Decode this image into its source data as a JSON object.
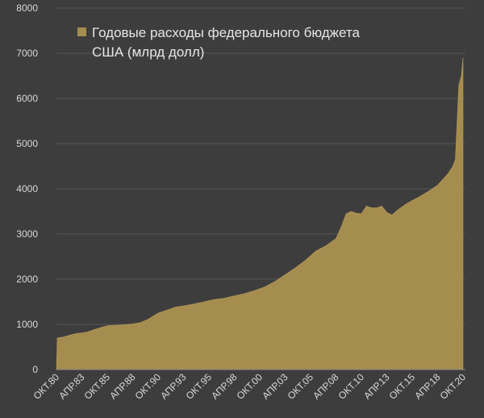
{
  "chart_data": {
    "type": "area",
    "title": "",
    "xlabel": "",
    "ylabel": "",
    "ylim": [
      0,
      8000
    ],
    "y_ticks": [
      0,
      1000,
      2000,
      3000,
      4000,
      5000,
      6000,
      7000,
      8000
    ],
    "grid": true,
    "legend_position": "top-left",
    "series": [
      {
        "name_lines": [
          "Годовые расходы федерального бюджета",
          "США (млрд долл)"
        ],
        "color": "#a58c4f",
        "points": [
          [
            "1980-10",
            0
          ],
          [
            "1980-11",
            700
          ],
          [
            "1981-06",
            720
          ],
          [
            "1982-03",
            770
          ],
          [
            "1982-10",
            800
          ],
          [
            "1983-04",
            810
          ],
          [
            "1983-10",
            830
          ],
          [
            "1984-06",
            880
          ],
          [
            "1985-04",
            940
          ],
          [
            "1985-10",
            970
          ],
          [
            "1986-06",
            980
          ],
          [
            "1987-04",
            990
          ],
          [
            "1988-04",
            1010
          ],
          [
            "1989-01",
            1040
          ],
          [
            "1989-10",
            1110
          ],
          [
            "1990-04",
            1180
          ],
          [
            "1990-10",
            1250
          ],
          [
            "1991-06",
            1300
          ],
          [
            "1992-06",
            1380
          ],
          [
            "1993-04",
            1410
          ],
          [
            "1994-04",
            1450
          ],
          [
            "1995-04",
            1500
          ],
          [
            "1996-04",
            1550
          ],
          [
            "1997-04",
            1580
          ],
          [
            "1998-04",
            1630
          ],
          [
            "1999-04",
            1680
          ],
          [
            "2000-04",
            1750
          ],
          [
            "2001-04",
            1830
          ],
          [
            "2002-04",
            1950
          ],
          [
            "2003-04",
            2100
          ],
          [
            "2004-04",
            2250
          ],
          [
            "2005-04",
            2420
          ],
          [
            "2006-04",
            2620
          ],
          [
            "2007-04",
            2740
          ],
          [
            "2008-04",
            2900
          ],
          [
            "2008-10",
            3150
          ],
          [
            "2009-04",
            3450
          ],
          [
            "2009-10",
            3500
          ],
          [
            "2010-04",
            3460
          ],
          [
            "2010-10",
            3450
          ],
          [
            "2011-04",
            3620
          ],
          [
            "2011-10",
            3580
          ],
          [
            "2012-04",
            3580
          ],
          [
            "2012-10",
            3620
          ],
          [
            "2013-04",
            3480
          ],
          [
            "2013-10",
            3420
          ],
          [
            "2014-04",
            3520
          ],
          [
            "2014-10",
            3600
          ],
          [
            "2015-04",
            3680
          ],
          [
            "2016-04",
            3800
          ],
          [
            "2017-04",
            3930
          ],
          [
            "2018-04",
            4080
          ],
          [
            "2019-04",
            4330
          ],
          [
            "2019-10",
            4500
          ],
          [
            "2020-01",
            4650
          ],
          [
            "2020-03",
            5500
          ],
          [
            "2020-05",
            6300
          ],
          [
            "2020-08",
            6500
          ],
          [
            "2020-10",
            6900
          ]
        ]
      }
    ],
    "x_ticks": [
      {
        "label": "ОКТ.80",
        "date": "1980-10"
      },
      {
        "label": "АПР.83",
        "date": "1983-04"
      },
      {
        "label": "ОКТ.85",
        "date": "1985-10"
      },
      {
        "label": "АПР.88",
        "date": "1988-04"
      },
      {
        "label": "ОКТ.90",
        "date": "1990-10"
      },
      {
        "label": "АПР.93",
        "date": "1993-04"
      },
      {
        "label": "ОКТ.95",
        "date": "1995-10"
      },
      {
        "label": "АПР.98",
        "date": "1998-04"
      },
      {
        "label": "ОКТ.00",
        "date": "2000-10"
      },
      {
        "label": "АПР.03",
        "date": "2003-04"
      },
      {
        "label": "ОКТ.05",
        "date": "2005-10"
      },
      {
        "label": "АПР.08",
        "date": "2008-04"
      },
      {
        "label": "ОКТ.10",
        "date": "2010-10"
      },
      {
        "label": "АПР.13",
        "date": "2013-04"
      },
      {
        "label": "ОКТ.15",
        "date": "2015-10"
      },
      {
        "label": "АПР.18",
        "date": "2018-04"
      },
      {
        "label": "ОКТ.20",
        "date": "2020-10"
      }
    ]
  }
}
